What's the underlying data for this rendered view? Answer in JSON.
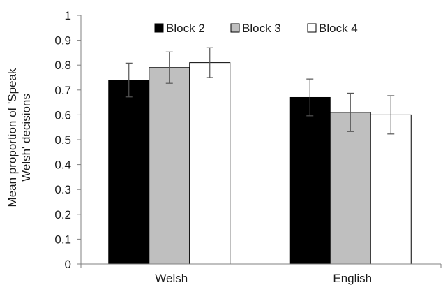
{
  "chart_data": {
    "type": "bar",
    "title": "",
    "xlabel": "",
    "ylabel": "Mean proportion of 'Speak Welsh' decisions",
    "ylabel_lines": [
      "Mean proportion of 'Speak",
      "Welsh' decisions"
    ],
    "ylim": [
      0,
      1
    ],
    "yticks": [
      "0",
      "0.1",
      "0.2",
      "0.3",
      "0.4",
      "0.5",
      "0.6",
      "0.7",
      "0.8",
      "0.9",
      "1"
    ],
    "grid": false,
    "legend_position": "top",
    "categories": [
      "Welsh",
      "English"
    ],
    "series": [
      {
        "name": "Block 2",
        "color": "#000000",
        "values": [
          0.74,
          0.67
        ],
        "error": [
          0.068,
          0.074
        ]
      },
      {
        "name": "Block 3",
        "color": "#bfbfbf",
        "values": [
          0.79,
          0.61
        ],
        "error": [
          0.063,
          0.077
        ]
      },
      {
        "name": "Block 4",
        "color": "#ffffff",
        "values": [
          0.81,
          0.6
        ],
        "error": [
          0.06,
          0.077
        ]
      }
    ]
  }
}
